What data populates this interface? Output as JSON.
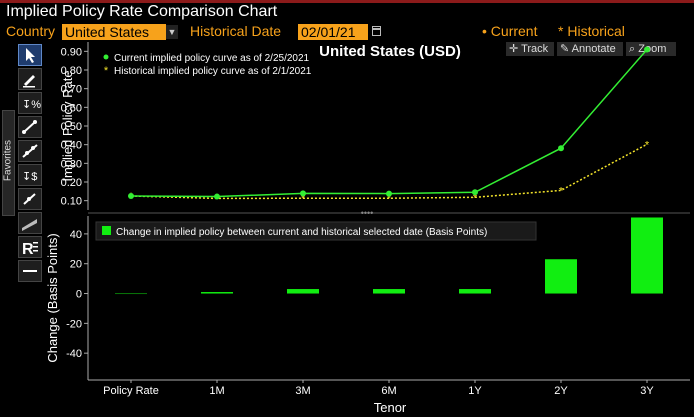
{
  "window": {
    "title": "Implied Policy Rate Comparison Chart"
  },
  "controls": {
    "country_label": "Country",
    "country_value": "United States",
    "historical_date_label": "Historical Date",
    "historical_date_value": "02/01/21",
    "legend_current": "Current",
    "legend_historical": "Historical"
  },
  "chart_buttons": {
    "track": "Track",
    "annotate": "Annotate",
    "zoom": "Zoom"
  },
  "sidebar": {
    "favorites_label": "Favorites"
  },
  "colors": {
    "current": "#33ee33",
    "historical": "#f5e52a",
    "accent": "#f7a21b",
    "bars": "#11ee11"
  },
  "chart_data": [
    {
      "type": "line",
      "title": "United States (USD)",
      "ylabel": "Implied Policy Rate",
      "categories": [
        "Policy Rate",
        "1M",
        "3M",
        "6M",
        "1Y",
        "2Y",
        "3Y"
      ],
      "yticks": [
        0.1,
        0.2,
        0.3,
        0.4,
        0.5,
        0.6,
        0.7,
        0.8,
        0.9
      ],
      "ylim": [
        0.05,
        0.95
      ],
      "grid": false,
      "legend_position": "top-left",
      "series": [
        {
          "name": "Current implied policy curve as of 2/25/2021",
          "values": [
            0.125,
            0.122,
            0.139,
            0.138,
            0.145,
            0.381,
            0.91
          ]
        },
        {
          "name": "Historical implied policy curve as of 2/1/2021",
          "values": [
            0.125,
            0.112,
            0.113,
            0.113,
            0.118,
            0.155,
            0.402
          ]
        }
      ]
    },
    {
      "type": "bar",
      "ylabel": "Change (Basis Points)",
      "xlabel": "Tenor",
      "categories": [
        "Policy Rate",
        "1M",
        "3M",
        "6M",
        "1Y",
        "2Y",
        "3Y"
      ],
      "yticks": [
        -40,
        -20,
        0,
        20,
        40
      ],
      "ylim": [
        -58,
        52
      ],
      "legend_position": "top-left",
      "series": [
        {
          "name": "Change in implied policy between current and historical selected date (Basis Points)",
          "values": [
            0,
            1,
            3,
            3,
            3,
            23,
            51
          ]
        }
      ]
    }
  ]
}
